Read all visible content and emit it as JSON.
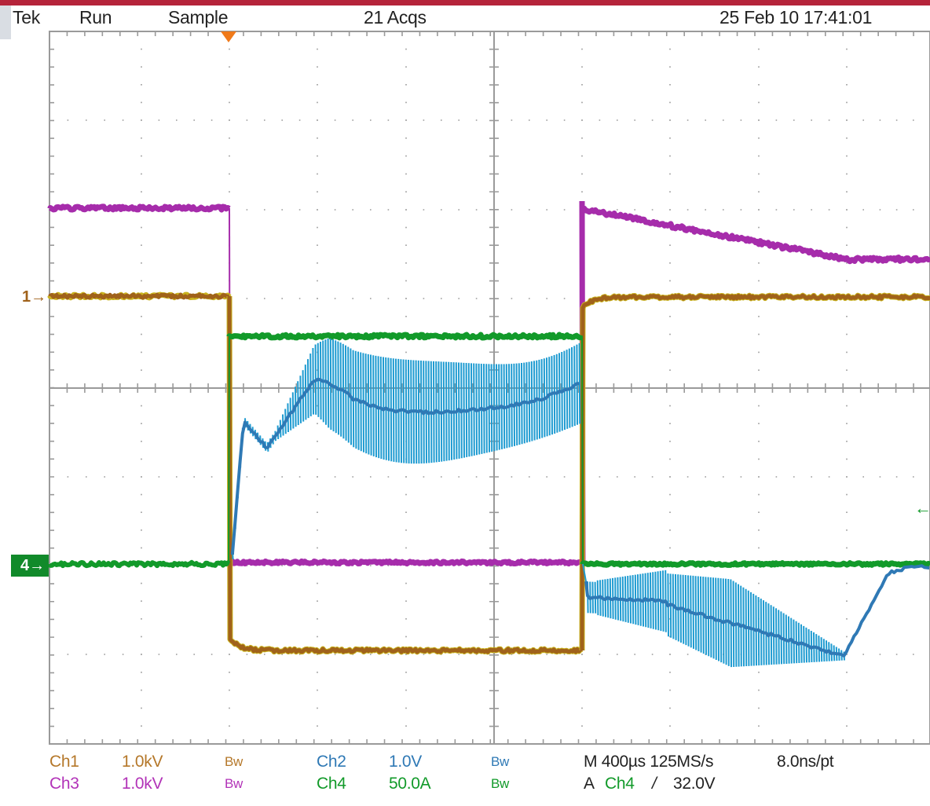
{
  "header": {
    "brand": "Tek",
    "run_state": "Run",
    "acq_mode": "Sample",
    "acq_count": "21 Acqs",
    "timestamp": "25 Feb 10 17:41:01"
  },
  "markers": {
    "ch1": "1",
    "ch4": "4"
  },
  "channels": {
    "ch1": {
      "label": "Ch1",
      "scale": "1.0kV",
      "bw": "Bw"
    },
    "ch3": {
      "label": "Ch3",
      "scale": "1.0kV",
      "bw": "Bw"
    },
    "ch2": {
      "label": "Ch2",
      "scale": "1.0V",
      "bw": "Bw"
    },
    "ch4": {
      "label": "Ch4",
      "scale": "50.0A",
      "bw": "Bw"
    }
  },
  "timebase": {
    "line1": "M 400µs 125MS/s",
    "resolution": "8.0ns/pt",
    "trigger_prefix": "A",
    "trigger_source": "Ch4",
    "trigger_slope_glyph": "/",
    "trigger_level": "32.0V"
  },
  "colors": {
    "ch1": "#a0621b",
    "ch3": "#a62cab",
    "ch2": "#2f79b5",
    "ch4": "#129a2a",
    "grid": "#9a9a9a",
    "trigger": "#f07a1a",
    "accent_stripe": "#b5243a"
  }
}
